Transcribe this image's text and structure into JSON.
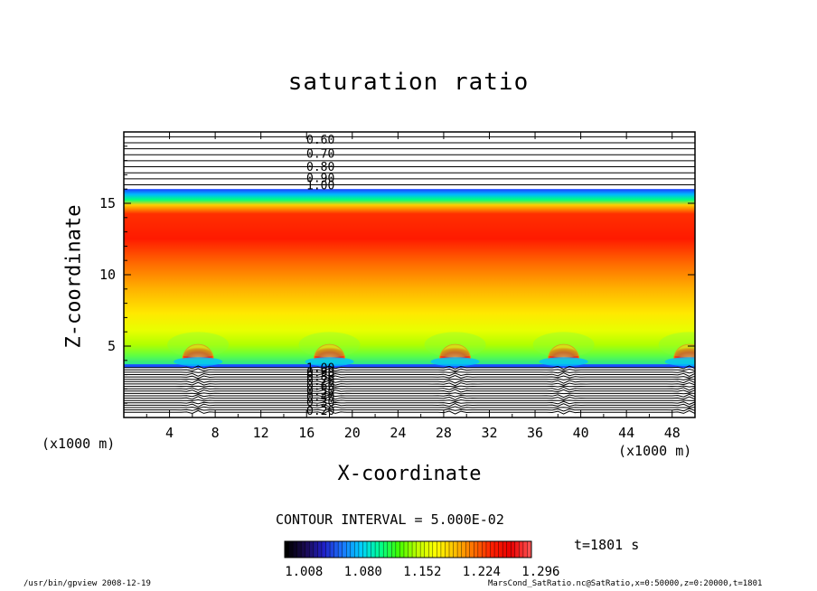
{
  "title": "saturation ratio",
  "chart_data": {
    "type": "heatmap",
    "title": "saturation ratio",
    "xlabel": "X-coordinate",
    "ylabel": "Z-coordinate",
    "x_unit": "(x1000 m)",
    "xlim": [
      0,
      50
    ],
    "ylim": [
      0,
      20
    ],
    "x_ticks": [
      "4",
      "8",
      "12",
      "16",
      "20",
      "24",
      "28",
      "32",
      "36",
      "40",
      "44",
      "48"
    ],
    "y_ticks": [
      "5",
      "10",
      "15"
    ],
    "contour_interval": "CONTOUR INTERVAL = 5.000E-02",
    "time": "t=1801 s",
    "upper_contour_labels": [
      "0.60",
      "0.70",
      "0.80",
      "0.90",
      "1.00"
    ],
    "lower_contour_labels": [
      "1.00",
      "0.90",
      "0.80",
      "0.70",
      "0.60",
      "0.50",
      "0.40",
      "0.30",
      "0.20"
    ],
    "colorbar_ticks": [
      "1.008",
      "1.080",
      "1.152",
      "1.224",
      "1.296"
    ],
    "colorbar_range": [
      1.0,
      1.3
    ],
    "colormap": [
      "#000000",
      "#1a0a50",
      "#2020c8",
      "#1a78ff",
      "#00d0ff",
      "#00ff90",
      "#40ff00",
      "#c0ff00",
      "#ffff00",
      "#ffc000",
      "#ff7000",
      "#ff2000",
      "#e80000",
      "#ff5050"
    ],
    "convective_cells_x": [
      6.5,
      18,
      29,
      38.5,
      49.5
    ]
  },
  "footer": {
    "left": "/usr/bin/gpview  2008-12-19",
    "right": "MarsCond_SatRatio.nc@SatRatio,x=0:50000,z=0:20000,t=1801"
  }
}
